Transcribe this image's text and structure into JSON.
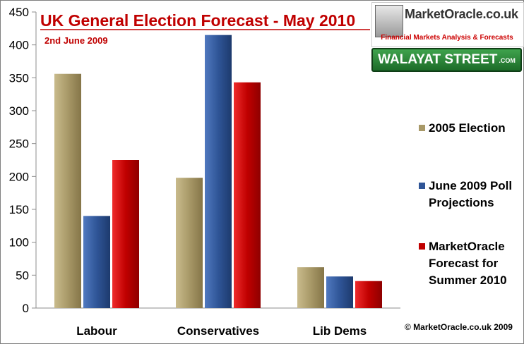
{
  "chart_data": {
    "type": "bar",
    "title": "UK General Election Forecast - May 2010",
    "subtitle": "2nd June 2009",
    "categories": [
      "Labour",
      "Conservatives",
      "Lib Dems"
    ],
    "series": [
      {
        "name": "2005 Election",
        "values": [
          356,
          198,
          62
        ],
        "color": "#a89968"
      },
      {
        "name": "June 2009 Poll Projections",
        "values": [
          140,
          415,
          48
        ],
        "color": "#2f5597"
      },
      {
        "name": "MarketOracle Forecast for Summer 2010",
        "values": [
          225,
          343,
          41
        ],
        "color": "#c00000"
      }
    ],
    "ylim": [
      0,
      450
    ],
    "yticks": [
      0,
      50,
      100,
      150,
      200,
      250,
      300,
      350,
      400,
      450
    ],
    "grid": false,
    "legend_position": "right",
    "legend_lines": [
      [
        "2005 Election"
      ],
      [
        "June 2009 Poll",
        "Projections"
      ],
      [
        "MarketOracle",
        "Forecast for",
        "Summer 2010"
      ]
    ],
    "copyright": "© MarketOracle.co.uk 2009"
  },
  "logos": {
    "marketoracle": {
      "brand": "MarketOracle.co.uk",
      "tagline": "Financial Markets Analysis & Forecasts"
    },
    "walayat": {
      "text": "WALAYAT STREET",
      "suffix": ".COM"
    }
  }
}
